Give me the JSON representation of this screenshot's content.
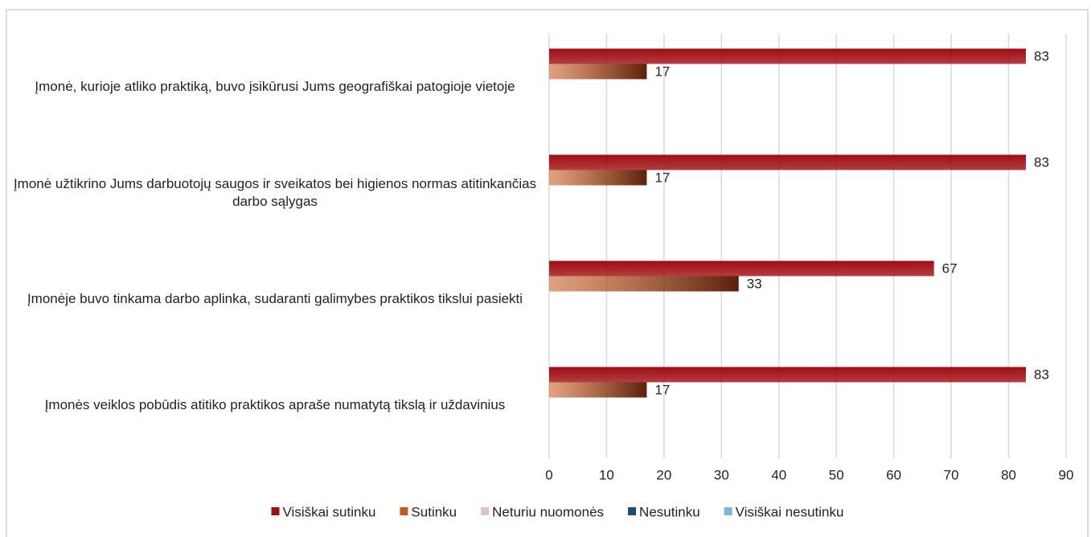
{
  "chart_data": {
    "type": "bar",
    "orientation": "horizontal",
    "categories": [
      "Įmonė, kurioje atliko praktiką, buvo įsikūrusi Jums geografiškai patogioje vietoje",
      "Įmonė užtikrino Jums darbuotojų saugos ir sveikatos bei higienos normas atitinkančias darbo sąlygas",
      "Įmonėje buvo tinkama darbo aplinka, sudaranti galimybes praktikos tikslui pasiekti",
      "Įmonės veiklos pobūdis atitiko praktikos apraše numatytą tikslą ir uždavinius"
    ],
    "series": [
      {
        "name": "Visiškai sutinku",
        "color": "#a00d12",
        "values": [
          83,
          83,
          67,
          83
        ]
      },
      {
        "name": "Sutinku",
        "color": "#c9561a",
        "values": [
          17,
          17,
          33,
          17
        ]
      },
      {
        "name": "Neturiu nuomonės",
        "color": "#dcc6bb",
        "values": [
          null,
          null,
          null,
          null
        ]
      },
      {
        "name": "Nesutinku",
        "color": "#1f4e6e",
        "values": [
          null,
          null,
          null,
          null
        ]
      },
      {
        "name": "Visiškai nesutinku",
        "color": "#7db9d6",
        "values": [
          null,
          null,
          null,
          null
        ]
      }
    ],
    "xlim": [
      0,
      90
    ],
    "xticks": [
      0,
      10,
      20,
      30,
      40,
      50,
      60,
      70,
      80,
      90
    ],
    "grid": true,
    "legend": "bottom"
  }
}
